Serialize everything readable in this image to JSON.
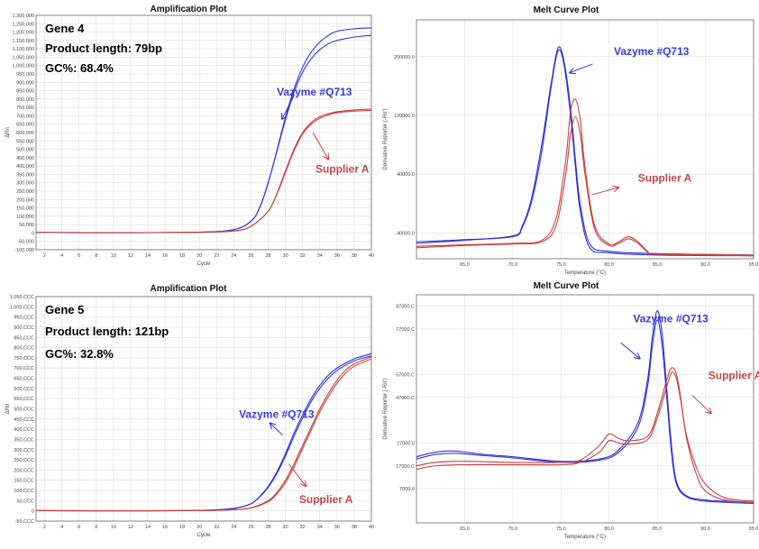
{
  "colors": {
    "blue": "#2f2fe0",
    "red": "#c9413f",
    "grid": "#dcdcdc",
    "frame": "#666666"
  },
  "chart_data": [
    {
      "type": "line",
      "title": "Amplification Plot",
      "xlabel": "Cycle",
      "ylabel": "ΔRn",
      "xlim": [
        1,
        40
      ],
      "ylim": [
        -100000,
        1300000
      ],
      "x_ticks": [
        2,
        4,
        6,
        8,
        10,
        12,
        14,
        16,
        18,
        20,
        22,
        24,
        26,
        28,
        30,
        32,
        34,
        36,
        38,
        40
      ],
      "y_ticks": [
        -100000,
        -50000,
        0,
        50000,
        100000,
        150000,
        200000,
        250000,
        300000,
        350000,
        400000,
        450000,
        500000,
        550000,
        600000,
        650000,
        700000,
        750000,
        800000,
        850000,
        900000,
        950000,
        1000000,
        1050000,
        1100000,
        1150000,
        1200000,
        1250000,
        1300000
      ],
      "y_tick_labels": [
        "-100,000",
        "-50,000",
        "0",
        "50,000",
        "100,000",
        "150,000",
        "200,000",
        "250,000",
        "300,000",
        "350,000",
        "400,000",
        "450,000",
        "500,000",
        "550,000",
        "600,000",
        "650,000",
        "700,000",
        "750,000",
        "800,000",
        "850,000",
        "900,000",
        "950,000",
        "1,000,000",
        "1,050,000",
        "1,100,000",
        "1,150,000",
        "1,200,000",
        "1,250,000",
        "1,300,000"
      ],
      "info": {
        "gene": "Gene 4",
        "length": "Product length: 79bp",
        "gc": "GC%: 68.4%"
      },
      "series": [
        {
          "name": "Vazyme #Q713",
          "color": "blue",
          "x": [
            1,
            10,
            20,
            24,
            26,
            27,
            28,
            29,
            30,
            31,
            32,
            33,
            34,
            35,
            36,
            38,
            40
          ],
          "y": [
            3000,
            2000,
            5000,
            20000,
            70000,
            150000,
            300000,
            490000,
            690000,
            860000,
            990000,
            1080000,
            1140000,
            1180000,
            1205000,
            1220000,
            1225000
          ]
        },
        {
          "name": "",
          "color": "blue",
          "x": [
            1,
            10,
            20,
            24,
            26,
            27,
            28,
            29,
            30,
            31,
            32,
            33,
            34,
            35,
            36,
            38,
            40
          ],
          "y": [
            3000,
            2000,
            5000,
            20000,
            70000,
            150000,
            300000,
            485000,
            675000,
            840000,
            960000,
            1040000,
            1095000,
            1130000,
            1150000,
            1170000,
            1180000
          ]
        },
        {
          "name": "Supplier A",
          "color": "red",
          "x": [
            1,
            10,
            20,
            24,
            26,
            28,
            29,
            30,
            31,
            32,
            33,
            34,
            35,
            36,
            38,
            40
          ],
          "y": [
            3000,
            2000,
            4000,
            12000,
            40000,
            130000,
            230000,
            360000,
            490000,
            590000,
            650000,
            685000,
            705000,
            718000,
            728000,
            732000
          ]
        },
        {
          "name": "",
          "color": "red",
          "x": [
            1,
            10,
            20,
            24,
            26,
            28,
            29,
            30,
            31,
            32,
            33,
            34,
            35,
            36,
            38,
            40
          ],
          "y": [
            3000,
            2000,
            4000,
            12000,
            40000,
            130000,
            235000,
            370000,
            500000,
            600000,
            660000,
            695000,
            712000,
            724000,
            735000,
            740000
          ]
        }
      ],
      "annotations": [
        {
          "text": "Vazyme #Q713",
          "color": "blue",
          "label_x": 29,
          "label_y": 820000,
          "arrow_from": [
            31,
            820000
          ],
          "arrow_to": [
            29.6,
            680000
          ]
        },
        {
          "text": "Supplier A",
          "color": "red",
          "label_x": 33.5,
          "label_y": 360000,
          "arrow_from": [
            33.2,
            600000
          ],
          "arrow_to": [
            35,
            440000
          ]
        }
      ]
    },
    {
      "type": "line",
      "title": "Melt Curve Plot",
      "xlabel": "Temperature (°C)",
      "ylabel": "Derivative Reporter (-Rn')",
      "xlim": [
        60,
        95
      ],
      "ylim": [
        -75000,
        250000
      ],
      "x_ticks": [
        65,
        70,
        75,
        80,
        85,
        90,
        95
      ],
      "x_tick_labels": [
        "65.0",
        "70.0",
        "75.0",
        "80.0",
        "85.0",
        "90.0",
        "95.0"
      ],
      "y_ticks": [
        -40000,
        40000,
        120000,
        200000
      ],
      "y_tick_labels": [
        "-40000.0",
        "40000.0",
        "120000.0",
        "200000.0"
      ],
      "series": [
        {
          "name": "Vazyme #Q713",
          "color": "blue",
          "x": [
            60,
            65,
            70,
            71,
            72,
            73,
            74,
            74.7,
            75.3,
            76,
            76.5,
            77,
            78,
            80,
            85,
            95
          ],
          "y": [
            -54000,
            -50000,
            -44000,
            -30000,
            10000,
            80000,
            165000,
            212000,
            195000,
            130000,
            60000,
            0,
            -55000,
            -65000,
            -68000,
            -70000
          ]
        },
        {
          "name": "",
          "color": "blue",
          "x": [
            60,
            65,
            70,
            71,
            72,
            73,
            74,
            74.7,
            75.3,
            76,
            76.5,
            77,
            78,
            80,
            85,
            95
          ],
          "y": [
            -52000,
            -49000,
            -45000,
            -32000,
            5000,
            70000,
            160000,
            208000,
            190000,
            120000,
            50000,
            -10000,
            -60000,
            -67000,
            -70000,
            -71000
          ]
        },
        {
          "name": "Supplier A",
          "color": "red",
          "x": [
            60,
            65,
            70,
            73,
            74.5,
            75.5,
            76,
            76.5,
            77,
            77.5,
            78.5,
            80,
            81,
            82,
            83,
            84,
            85,
            95
          ],
          "y": [
            -58000,
            -56000,
            -54000,
            -50000,
            -20000,
            60000,
            125000,
            142000,
            115000,
            50000,
            -30000,
            -55000,
            -52000,
            -45000,
            -52000,
            -65000,
            -68000,
            -70000
          ]
        },
        {
          "name": "",
          "color": "red",
          "x": [
            60,
            65,
            70,
            73,
            74.5,
            75.5,
            76,
            76.5,
            77,
            77.5,
            78.5,
            80,
            81,
            82,
            83,
            84,
            85,
            95
          ],
          "y": [
            -60000,
            -57000,
            -55000,
            -52000,
            -30000,
            40000,
            95000,
            118000,
            95000,
            40000,
            -35000,
            -57000,
            -54000,
            -48000,
            -54000,
            -66000,
            -69000,
            -71000
          ]
        }
      ],
      "annotations": [
        {
          "text": "Vazyme #Q713",
          "color": "blue",
          "label_x": 80.5,
          "label_y": 202000,
          "arrow_from": [
            78.3,
            190000
          ],
          "arrow_to": [
            75.9,
            178000
          ]
        },
        {
          "text": "Supplier A",
          "color": "red",
          "label_x": 83,
          "label_y": 30000,
          "arrow_from": [
            78.2,
            12000
          ],
          "arrow_to": [
            81,
            22000
          ]
        }
      ]
    },
    {
      "type": "line",
      "title": "Amplification Plot",
      "xlabel": "Cycle",
      "ylabel": "ΔRn",
      "xlim": [
        1,
        40
      ],
      "ylim": [
        -50000,
        1050000
      ],
      "x_ticks": [
        2,
        4,
        6,
        8,
        10,
        12,
        14,
        16,
        18,
        20,
        22,
        24,
        26,
        28,
        30,
        32,
        34,
        36,
        38,
        40
      ],
      "y_ticks": [
        -50000,
        0,
        50000,
        100000,
        150000,
        200000,
        250000,
        300000,
        350000,
        400000,
        450000,
        500000,
        550000,
        600000,
        650000,
        700000,
        750000,
        800000,
        850000,
        900000,
        950000,
        1000000,
        1050000
      ],
      "y_tick_labels": [
        "-50,CCC",
        "0",
        "50,CCC",
        "100,CCC",
        "150,CCC",
        "200,CCC",
        "250,CCC",
        "300,CCC",
        "350,CCC",
        "400,CCC",
        "450,CCC",
        "500,CCC",
        "550,CCC",
        "600,CCC",
        "650,CCC",
        "700,CCC",
        "750,CCC",
        "800,CCC",
        "850,CCC",
        "900,CCC",
        "950,CCC",
        "1,000,CCC",
        "1,050,CCC"
      ],
      "info": {
        "gene": "Gene 5",
        "length": "Product length: 121bp",
        "gc": "GC%: 32.8%"
      },
      "series": [
        {
          "name": "Vazyme #Q713",
          "color": "blue",
          "x": [
            1,
            10,
            20,
            24,
            26,
            27,
            28,
            29,
            30,
            31,
            32,
            33,
            34,
            35,
            36,
            38,
            40
          ],
          "y": [
            1000,
            500,
            2000,
            12000,
            35000,
            70000,
            120000,
            190000,
            280000,
            380000,
            470000,
            550000,
            615000,
            665000,
            700000,
            745000,
            770000
          ]
        },
        {
          "name": "",
          "color": "blue",
          "x": [
            1,
            10,
            20,
            24,
            26,
            27,
            28,
            29,
            30,
            31,
            32,
            33,
            34,
            35,
            36,
            38,
            40
          ],
          "y": [
            1000,
            500,
            2000,
            12000,
            35000,
            68000,
            115000,
            182000,
            268000,
            365000,
            455000,
            535000,
            600000,
            650000,
            688000,
            735000,
            760000
          ]
        },
        {
          "name": "Supplier A",
          "color": "red",
          "x": [
            1,
            10,
            20,
            24,
            26,
            28,
            29,
            30,
            31,
            32,
            33,
            34,
            35,
            36,
            37,
            38,
            40
          ],
          "y": [
            1000,
            500,
            1500,
            6000,
            15000,
            50000,
            90000,
            150000,
            230000,
            320000,
            410000,
            500000,
            575000,
            640000,
            690000,
            720000,
            755000
          ]
        },
        {
          "name": "",
          "color": "red",
          "x": [
            1,
            10,
            20,
            24,
            26,
            28,
            29,
            30,
            31,
            32,
            33,
            34,
            35,
            36,
            37,
            38,
            40
          ],
          "y": [
            1000,
            500,
            1500,
            6000,
            14000,
            45000,
            82000,
            138000,
            215000,
            305000,
            395000,
            485000,
            560000,
            625000,
            675000,
            708000,
            745000
          ]
        }
      ],
      "annotations": [
        {
          "text": "Vazyme #Q713",
          "color": "blue",
          "label_x": 24.6,
          "label_y": 455000,
          "arrow_from": [
            29.7,
            370000
          ],
          "arrow_to": [
            28.2,
            430000
          ]
        },
        {
          "text": "Supplier A",
          "color": "red",
          "label_x": 31.6,
          "label_y": 38000,
          "arrow_from": [
            30.4,
            230000
          ],
          "arrow_to": [
            32.4,
            120000
          ]
        }
      ]
    },
    {
      "type": "line",
      "title": "Melt Curve Plot",
      "xlabel": "Temperature (°C)",
      "ylabel": "Derivative Reporter (-Rn')",
      "xlim": [
        60,
        95
      ],
      "ylim": [
        -8000,
        92000
      ],
      "x_ticks": [
        65,
        70,
        75,
        80,
        85,
        90,
        95
      ],
      "x_tick_labels": [
        "65.0",
        "70.0",
        "75.0",
        "80.0",
        "85.0",
        "90.0",
        "95.0"
      ],
      "y_ticks": [
        7000,
        17000,
        27000,
        47000,
        57000,
        77000,
        87000
      ],
      "y_tick_labels": [
        "7000.0",
        "17000.C",
        "27000.0",
        "47000.C",
        "57000.C",
        "77000.C",
        "87000.C"
      ],
      "series": [
        {
          "name": "Vazyme #Q713",
          "color": "blue",
          "x": [
            60,
            62,
            64,
            67,
            70,
            75,
            79,
            81,
            83,
            84,
            84.5,
            85,
            85.5,
            86,
            86.5,
            87,
            88,
            90,
            95
          ],
          "y": [
            21000,
            23000,
            23500,
            22000,
            21000,
            19000,
            20000,
            24000,
            36000,
            55000,
            74000,
            85000,
            75000,
            50000,
            25000,
            10000,
            4000,
            2000,
            1000
          ]
        },
        {
          "name": "",
          "color": "blue",
          "x": [
            60,
            62,
            64,
            67,
            70,
            75,
            79,
            81,
            83,
            84,
            84.5,
            85,
            85.5,
            86,
            86.5,
            87,
            88,
            90,
            95
          ],
          "y": [
            20000,
            22000,
            22500,
            21500,
            20500,
            18500,
            19500,
            23000,
            34000,
            52000,
            70000,
            81000,
            70000,
            46000,
            22000,
            9000,
            3500,
            1500,
            500
          ]
        },
        {
          "name": "Supplier A",
          "color": "red",
          "x": [
            60,
            62,
            65,
            70,
            75,
            77,
            79,
            80,
            81,
            82,
            84,
            85,
            86,
            86.5,
            87,
            87.5,
            88,
            89,
            90,
            92,
            95
          ],
          "y": [
            17000,
            18500,
            19000,
            18500,
            18500,
            19500,
            26000,
            31000,
            29000,
            28000,
            30000,
            40000,
            55000,
            60000,
            57000,
            45000,
            30000,
            14000,
            6000,
            2000,
            1000
          ]
        },
        {
          "name": "",
          "color": "red",
          "x": [
            60,
            62,
            65,
            70,
            75,
            77,
            79,
            80,
            81,
            82,
            84,
            85,
            86,
            86.5,
            87,
            87.5,
            88,
            89,
            90,
            92,
            95
          ],
          "y": [
            15500,
            17000,
            17500,
            17500,
            17500,
            18500,
            23000,
            28000,
            27000,
            26500,
            28500,
            38000,
            52000,
            58000,
            55000,
            44000,
            31000,
            17000,
            9000,
            3000,
            1500
          ]
        }
      ],
      "annotations": [
        {
          "text": "Vazyme #Q713",
          "color": "blue",
          "label_x": 82.5,
          "label_y": 80000,
          "arrow_from": [
            81.2,
            71000
          ],
          "arrow_to": [
            83.2,
            64000
          ]
        },
        {
          "text": "Supplier A",
          "color": "red",
          "label_x": 90.3,
          "label_y": 55000,
          "arrow_from": [
            88.6,
            48000
          ],
          "arrow_to": [
            90.6,
            40000
          ]
        }
      ]
    }
  ]
}
